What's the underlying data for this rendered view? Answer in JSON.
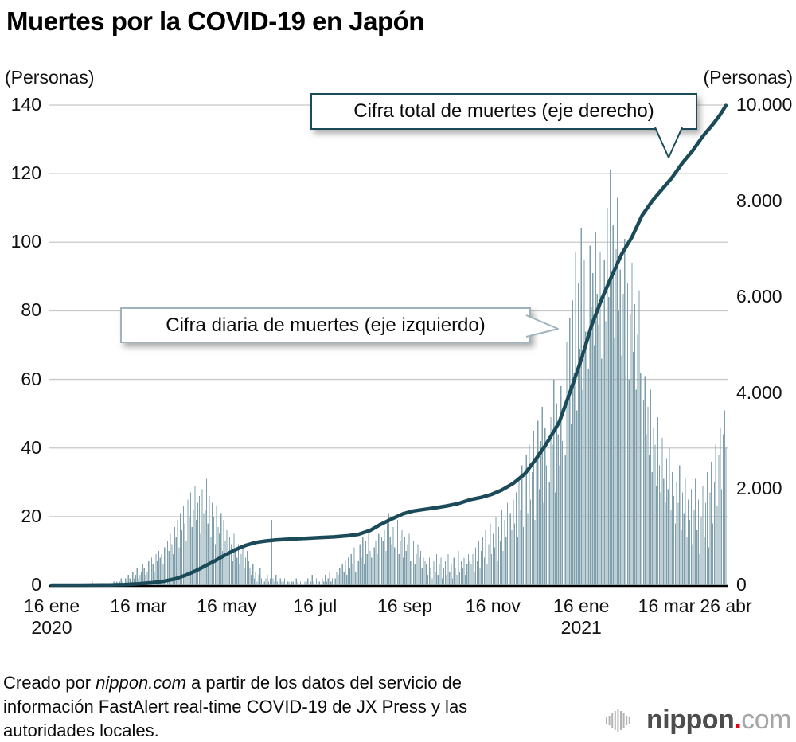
{
  "page": {
    "title": "Muertes por la COVID-19 en Japón"
  },
  "axes": {
    "left_unit": "(Personas)",
    "right_unit": "(Personas)"
  },
  "annotations": {
    "total_line": "Cifra total de muertes (eje derecho)",
    "daily_bars": "Cifra diaria de muertes (eje izquierdo)"
  },
  "footer": {
    "part1": "Creado por ",
    "source": "nippon.com",
    "part2": " a partir de los datos del servicio de información FastAlert real-time COVID-19 de JX Press y las autoridades locales."
  },
  "logo": {
    "name": "nippon",
    "dot": ".",
    "tld": "com"
  },
  "chart_data": {
    "type": "bar+line combo",
    "title": "Muertes por la COVID-19 en Japón",
    "x_range": {
      "start": "16 ene 2020",
      "end": "26 abr 2021",
      "total_days": 466
    },
    "left_axis": {
      "unit": "(Personas)",
      "series": "Cifra diaria de muertes",
      "ylim": [
        0,
        140
      ],
      "ticks": [
        0,
        20,
        40,
        60,
        80,
        100,
        120,
        140
      ]
    },
    "right_axis": {
      "unit": "(Personas)",
      "series": "Cifra total de muertes",
      "ylim": [
        0,
        10000
      ],
      "ticks": [
        {
          "value": 0,
          "label": "0"
        },
        {
          "value": 2000,
          "label": "2.000"
        },
        {
          "value": 4000,
          "label": "4.000"
        },
        {
          "value": 6000,
          "label": "6.000"
        },
        {
          "value": 8000,
          "label": "8.000"
        },
        {
          "value": 10000,
          "label": "10.000"
        }
      ]
    },
    "x_ticks": [
      {
        "day": 0,
        "label": "16 ene",
        "sub": "2020"
      },
      {
        "day": 60,
        "label": "16 mar"
      },
      {
        "day": 121,
        "label": "16 may"
      },
      {
        "day": 182,
        "label": "16 jul"
      },
      {
        "day": 244,
        "label": "16 sep"
      },
      {
        "day": 305,
        "label": "16 nov"
      },
      {
        "day": 366,
        "label": "16 ene",
        "sub": "2021"
      },
      {
        "day": 425,
        "label": "16 mar"
      },
      {
        "day": 466,
        "label": "26 abr"
      }
    ],
    "grid": "horizontal gridlines at left-axis ticks",
    "colors": {
      "bars": "#7f9fac",
      "line": "#1b4b59",
      "grid": "#c8c8c8",
      "axis": "#000000"
    },
    "daily_deaths": [
      0,
      0,
      0,
      0,
      0,
      0,
      0,
      0,
      0,
      0,
      0,
      0,
      0,
      0,
      0,
      0,
      0,
      0,
      0,
      0,
      0,
      0,
      0,
      0,
      0,
      0,
      0,
      0,
      1,
      0,
      0,
      0,
      0,
      0,
      0,
      0,
      0,
      0,
      0,
      0,
      0,
      0,
      0,
      1,
      0,
      1,
      0,
      1,
      2,
      1,
      0,
      2,
      1,
      3,
      2,
      1,
      4,
      2,
      3,
      5,
      2,
      3,
      4,
      6,
      5,
      3,
      4,
      7,
      5,
      8,
      6,
      4,
      9,
      7,
      10,
      8,
      9,
      6,
      11,
      8,
      13,
      10,
      15,
      12,
      9,
      17,
      14,
      19,
      11,
      21,
      16,
      23,
      18,
      13,
      25,
      20,
      27,
      17,
      22,
      29,
      19,
      24,
      26,
      15,
      28,
      21,
      22,
      31,
      18,
      26,
      14,
      24,
      20,
      12,
      23,
      17,
      15,
      21,
      10,
      19,
      13,
      16,
      9,
      14,
      12,
      7,
      15,
      10,
      8,
      12,
      6,
      9,
      11,
      5,
      8,
      10,
      7,
      5,
      3,
      6,
      2,
      4,
      1,
      3,
      5,
      2,
      4,
      1,
      2,
      3,
      1,
      2,
      19,
      2,
      1,
      3,
      1,
      0,
      2,
      1,
      1,
      2,
      0,
      1,
      1,
      0,
      1,
      1,
      0,
      2,
      1,
      0,
      1,
      2,
      0,
      1,
      1,
      2,
      0,
      1,
      3,
      1,
      0,
      2,
      1,
      1,
      0,
      2,
      1,
      3,
      1,
      2,
      4,
      1,
      2,
      3,
      2,
      4,
      3,
      5,
      2,
      6,
      4,
      7,
      3,
      8,
      5,
      9,
      6,
      11,
      4,
      10,
      7,
      12,
      8,
      14,
      6,
      13,
      9,
      15,
      10,
      8,
      16,
      11,
      13,
      9,
      15,
      12,
      14,
      13,
      16,
      10,
      18,
      21,
      14,
      12,
      17,
      11,
      15,
      19,
      9,
      13,
      16,
      8,
      14,
      10,
      12,
      15,
      7,
      11,
      13,
      6,
      9,
      12,
      8,
      10,
      5,
      8,
      7,
      6,
      3,
      8,
      5,
      2,
      7,
      4,
      9,
      3,
      6,
      8,
      2,
      5,
      7,
      3,
      9,
      4,
      6,
      2,
      8,
      5,
      3,
      10,
      4,
      7,
      5,
      8,
      3,
      6,
      9,
      7,
      6,
      9,
      4,
      11,
      7,
      13,
      5,
      10,
      14,
      8,
      16,
      6,
      12,
      18,
      9,
      15,
      11,
      20,
      7,
      17,
      13,
      22,
      10,
      19,
      14,
      24,
      11,
      21,
      16,
      25,
      18,
      27,
      14,
      31,
      22,
      35,
      17,
      29,
      38,
      21,
      41,
      25,
      33,
      45,
      19,
      37,
      48,
      28,
      42,
      52,
      24,
      46,
      35,
      56,
      30,
      49,
      41,
      60,
      27,
      53,
      44,
      35,
      58,
      42,
      65,
      38,
      71,
      55,
      78,
      47,
      83,
      62,
      97,
      51,
      88,
      69,
      104,
      57,
      95,
      74,
      108,
      63,
      99,
      81,
      91,
      70,
      103,
      85,
      76,
      97,
      66,
      89,
      95,
      77,
      110,
      84,
      121,
      89,
      105,
      72,
      98,
      113,
      80,
      92,
      67,
      85,
      101,
      74,
      88,
      60,
      79,
      94,
      68,
      82,
      57,
      73,
      86,
      62,
      70,
      54,
      61,
      44,
      52,
      38,
      57,
      33,
      46,
      41,
      29,
      49,
      35,
      27,
      43,
      31,
      24,
      37,
      28,
      40,
      22,
      33,
      26,
      18,
      30,
      24,
      35,
      16,
      27,
      21,
      31,
      14,
      25,
      19,
      28,
      12,
      22,
      31,
      16,
      25,
      9,
      20,
      29,
      14,
      24,
      33,
      11,
      27,
      36,
      18,
      30,
      41,
      23,
      38,
      46,
      28,
      44,
      51,
      40
    ],
    "cumulative_deaths": [
      [
        0,
        0
      ],
      [
        20,
        0
      ],
      [
        27,
        1
      ],
      [
        40,
        5
      ],
      [
        50,
        12
      ],
      [
        60,
        29
      ],
      [
        70,
        54
      ],
      [
        77,
        80
      ],
      [
        85,
        130
      ],
      [
        92,
        200
      ],
      [
        99,
        290
      ],
      [
        106,
        400
      ],
      [
        113,
        510
      ],
      [
        120,
        630
      ],
      [
        127,
        740
      ],
      [
        134,
        830
      ],
      [
        141,
        890
      ],
      [
        148,
        920
      ],
      [
        155,
        940
      ],
      [
        165,
        960
      ],
      [
        175,
        975
      ],
      [
        185,
        990
      ],
      [
        195,
        1005
      ],
      [
        205,
        1030
      ],
      [
        212,
        1060
      ],
      [
        220,
        1140
      ],
      [
        227,
        1260
      ],
      [
        235,
        1380
      ],
      [
        243,
        1490
      ],
      [
        250,
        1545
      ],
      [
        258,
        1580
      ],
      [
        265,
        1610
      ],
      [
        273,
        1650
      ],
      [
        281,
        1700
      ],
      [
        289,
        1780
      ],
      [
        297,
        1830
      ],
      [
        304,
        1890
      ],
      [
        311,
        1980
      ],
      [
        319,
        2120
      ],
      [
        327,
        2320
      ],
      [
        334,
        2600
      ],
      [
        341,
        2900
      ],
      [
        348,
        3250
      ],
      [
        351,
        3414
      ],
      [
        358,
        4000
      ],
      [
        366,
        4700
      ],
      [
        373,
        5400
      ],
      [
        380,
        5953
      ],
      [
        387,
        6434
      ],
      [
        394,
        6900
      ],
      [
        401,
        7250
      ],
      [
        408,
        7700
      ],
      [
        415,
        8000
      ],
      [
        422,
        8250
      ],
      [
        429,
        8500
      ],
      [
        436,
        8800
      ],
      [
        443,
        9050
      ],
      [
        450,
        9350
      ],
      [
        457,
        9600
      ],
      [
        462,
        9800
      ],
      [
        466,
        9990
      ]
    ]
  }
}
